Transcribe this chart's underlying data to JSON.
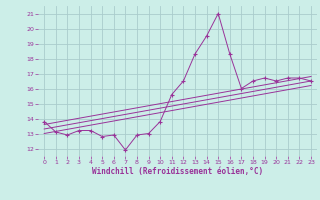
{
  "bg_color": "#cceee8",
  "grid_color": "#aacccc",
  "line_color": "#993399",
  "xlabel": "Windchill (Refroidissement éolien,°C)",
  "ylim": [
    11.5,
    21.5
  ],
  "xlim": [
    -0.5,
    23.5
  ],
  "yticks": [
    12,
    13,
    14,
    15,
    16,
    17,
    18,
    19,
    20,
    21
  ],
  "xticks": [
    0,
    1,
    2,
    3,
    4,
    5,
    6,
    7,
    8,
    9,
    10,
    11,
    12,
    13,
    14,
    15,
    16,
    17,
    18,
    19,
    20,
    21,
    22,
    23
  ],
  "data_line": {
    "x": [
      0,
      1,
      2,
      3,
      4,
      5,
      6,
      7,
      8,
      9,
      10,
      11,
      12,
      13,
      14,
      15,
      16,
      17,
      18,
      19,
      20,
      21,
      22,
      23
    ],
    "y": [
      13.8,
      13.1,
      12.9,
      13.2,
      13.2,
      12.8,
      12.9,
      11.9,
      12.9,
      13.0,
      13.8,
      15.6,
      16.5,
      18.3,
      19.5,
      21.0,
      18.3,
      16.0,
      16.5,
      16.7,
      16.5,
      16.7,
      16.7,
      16.5
    ]
  },
  "regression_lines": [
    {
      "x": [
        0,
        23
      ],
      "y": [
        13.0,
        16.2
      ]
    },
    {
      "x": [
        0,
        23
      ],
      "y": [
        13.3,
        16.5
      ]
    },
    {
      "x": [
        0,
        23
      ],
      "y": [
        13.6,
        16.8
      ]
    }
  ],
  "figsize": [
    3.2,
    2.0
  ],
  "dpi": 100
}
